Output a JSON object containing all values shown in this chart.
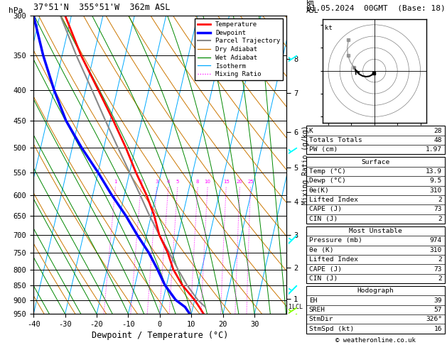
{
  "title_left": "37°51'N  355°51'W  362m ASL",
  "title_right": "01.05.2024  00GMT  (Base: 18)",
  "xlabel": "Dewpoint / Temperature (°C)",
  "pressure_ticks": [
    300,
    350,
    400,
    450,
    500,
    550,
    600,
    650,
    700,
    750,
    800,
    850,
    900,
    950
  ],
  "temp_ticks": [
    -40,
    -30,
    -20,
    -10,
    0,
    10,
    20,
    30
  ],
  "km_ticks": [
    1,
    2,
    3,
    4,
    5,
    6,
    7,
    8
  ],
  "km_pressure_approx": [
    895,
    795,
    700,
    615,
    540,
    470,
    405,
    355
  ],
  "legend_items": [
    {
      "label": "Temperature",
      "color": "#ff0000",
      "lw": 2.0,
      "ls": "-"
    },
    {
      "label": "Dewpoint",
      "color": "#0000ff",
      "lw": 2.5,
      "ls": "-"
    },
    {
      "label": "Parcel Trajectory",
      "color": "#888888",
      "lw": 1.5,
      "ls": "-"
    },
    {
      "label": "Dry Adiabat",
      "color": "#cc7700",
      "lw": 0.9,
      "ls": "-"
    },
    {
      "label": "Wet Adiabat",
      "color": "#008800",
      "lw": 0.9,
      "ls": "-"
    },
    {
      "label": "Isotherm",
      "color": "#00aaff",
      "lw": 0.9,
      "ls": "-"
    },
    {
      "label": "Mixing Ratio",
      "color": "#ff00ff",
      "lw": 0.9,
      "ls": ":"
    }
  ],
  "temp_profile": {
    "pressure": [
      950,
      925,
      900,
      850,
      800,
      750,
      700,
      650,
      600,
      550,
      500,
      450,
      400,
      350,
      300
    ],
    "temp": [
      13.9,
      12.0,
      10.0,
      5.0,
      1.0,
      -2.0,
      -6.0,
      -9.0,
      -13.0,
      -18.0,
      -23.0,
      -29.0,
      -36.0,
      -44.0,
      -52.0
    ]
  },
  "dewp_profile": {
    "pressure": [
      950,
      925,
      900,
      850,
      800,
      750,
      700,
      650,
      600,
      550,
      500,
      450,
      400,
      350,
      300
    ],
    "temp": [
      9.5,
      7.5,
      4.0,
      -0.5,
      -4.0,
      -8.0,
      -13.0,
      -18.0,
      -24.0,
      -30.0,
      -37.0,
      -44.0,
      -50.0,
      -56.0,
      -62.0
    ]
  },
  "parcel_profile": {
    "pressure": [
      925,
      900,
      850,
      800,
      750,
      700,
      650,
      600,
      550,
      500,
      450,
      400,
      350,
      300
    ],
    "temp": [
      13.9,
      11.0,
      6.5,
      2.5,
      -1.5,
      -6.0,
      -10.5,
      -15.0,
      -20.0,
      -25.5,
      -31.5,
      -38.0,
      -45.5,
      -53.5
    ]
  },
  "lcl_pressure": 925,
  "mixing_ratio_values": [
    1,
    2,
    3,
    4,
    5,
    8,
    10,
    15,
    20,
    25
  ],
  "table_boxes": [
    {
      "entries": [
        {
          "label": "K",
          "value": "28",
          "header": false
        },
        {
          "label": "Totals Totals",
          "value": "48",
          "header": false
        },
        {
          "label": "PW (cm)",
          "value": "1.97",
          "header": false
        }
      ]
    },
    {
      "entries": [
        {
          "label": "Surface",
          "value": "",
          "header": true
        },
        {
          "label": "Temp (°C)",
          "value": "13.9",
          "header": false
        },
        {
          "label": "Dewp (°C)",
          "value": "9.5",
          "header": false
        },
        {
          "label": "θe(K)",
          "value": "310",
          "header": false
        },
        {
          "label": "Lifted Index",
          "value": "2",
          "header": false
        },
        {
          "label": "CAPE (J)",
          "value": "73",
          "header": false
        },
        {
          "label": "CIN (J)",
          "value": "2",
          "header": false
        }
      ]
    },
    {
      "entries": [
        {
          "label": "Most Unstable",
          "value": "",
          "header": true
        },
        {
          "label": "Pressure (mb)",
          "value": "974",
          "header": false
        },
        {
          "label": "θe (K)",
          "value": "310",
          "header": false
        },
        {
          "label": "Lifted Index",
          "value": "2",
          "header": false
        },
        {
          "label": "CAPE (J)",
          "value": "73",
          "header": false
        },
        {
          "label": "CIN (J)",
          "value": "2",
          "header": false
        }
      ]
    },
    {
      "entries": [
        {
          "label": "Hodograph",
          "value": "",
          "header": true
        },
        {
          "label": "EH",
          "value": "39",
          "header": false
        },
        {
          "label": "SREH",
          "value": "57",
          "header": false
        },
        {
          "label": "StmDir",
          "value": "326°",
          "header": false
        },
        {
          "label": "StmSpd (kt)",
          "value": "16",
          "header": false
        }
      ]
    }
  ]
}
